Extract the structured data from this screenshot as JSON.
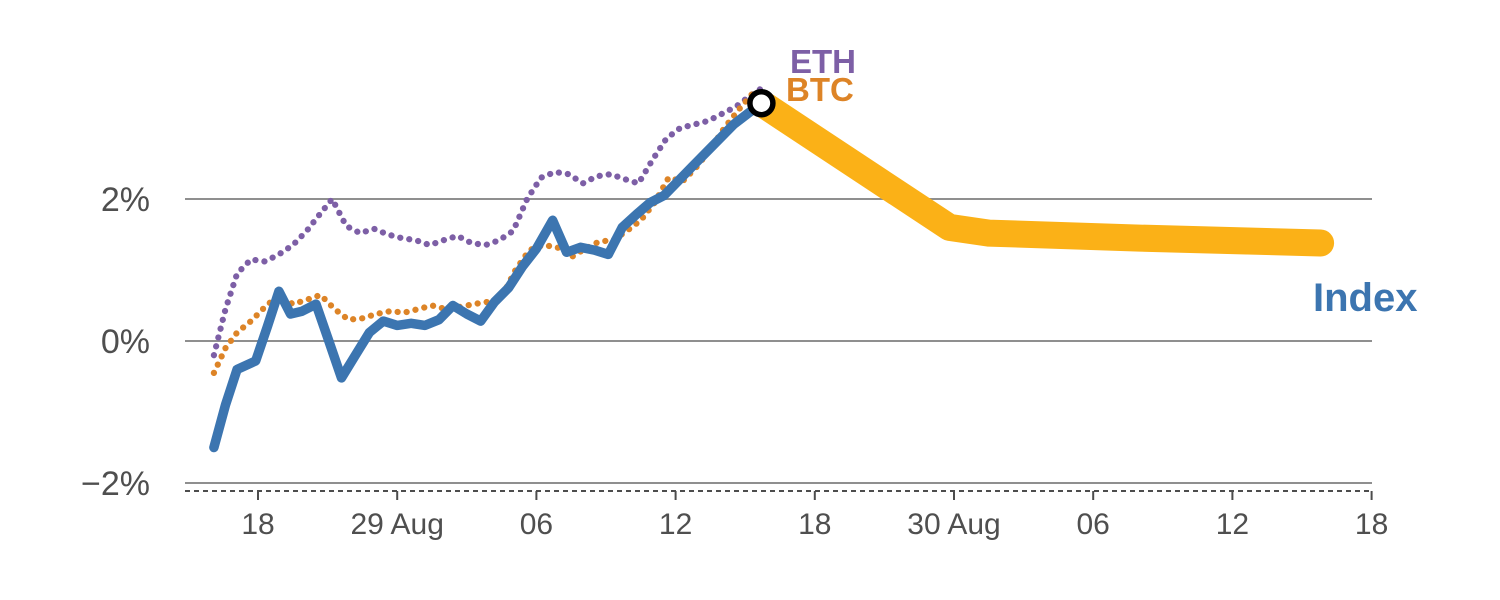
{
  "chart_data": {
    "type": "line",
    "title": "",
    "description": "Intraday percentage performance chart: dotted ETH and BTC series and a solid Index line rising to a peak (ring marker), followed by a thick orange projection band declining and flattening.",
    "grid": "horizontal-only",
    "legend_position": "inline-labels",
    "y_axis": {
      "unit": "percent",
      "tick_labels": [
        "2%",
        "0%",
        "−2%"
      ],
      "tick_values": [
        2,
        0,
        -2
      ],
      "range": [
        -2.4,
        4.0
      ]
    },
    "x_axis": {
      "unit": "hour-of-period",
      "tick_labels": [
        "18",
        "29 Aug",
        "06",
        "12",
        "18",
        "30 Aug",
        "06",
        "12",
        "18"
      ],
      "tick_values": [
        18,
        24,
        30,
        36,
        42,
        48,
        54,
        60,
        66
      ],
      "range": [
        15.5,
        66.5
      ]
    },
    "labels": {
      "eth": "ETH",
      "btc": "BTC",
      "index": "Index"
    },
    "series": [
      {
        "name": "ETH",
        "color": "#7d5fa6",
        "style": "dotted",
        "points": [
          [
            16.1,
            -0.2
          ],
          [
            16.6,
            0.45
          ],
          [
            17.1,
            0.95
          ],
          [
            17.7,
            1.15
          ],
          [
            18.3,
            1.12
          ],
          [
            18.9,
            1.22
          ],
          [
            19.5,
            1.35
          ],
          [
            20.1,
            1.55
          ],
          [
            20.7,
            1.8
          ],
          [
            21.2,
            2.0
          ],
          [
            21.8,
            1.62
          ],
          [
            22.4,
            1.52
          ],
          [
            23.0,
            1.58
          ],
          [
            23.6,
            1.5
          ],
          [
            24.2,
            1.45
          ],
          [
            24.8,
            1.42
          ],
          [
            25.4,
            1.35
          ],
          [
            26.0,
            1.42
          ],
          [
            26.6,
            1.48
          ],
          [
            27.2,
            1.38
          ],
          [
            27.8,
            1.35
          ],
          [
            28.4,
            1.42
          ],
          [
            29.0,
            1.55
          ],
          [
            29.6,
            2.0
          ],
          [
            30.2,
            2.3
          ],
          [
            30.8,
            2.38
          ],
          [
            31.4,
            2.35
          ],
          [
            32.0,
            2.22
          ],
          [
            32.6,
            2.32
          ],
          [
            33.2,
            2.35
          ],
          [
            33.8,
            2.28
          ],
          [
            34.4,
            2.22
          ],
          [
            35.0,
            2.55
          ],
          [
            35.6,
            2.85
          ],
          [
            36.2,
            3.0
          ],
          [
            36.8,
            3.05
          ],
          [
            37.4,
            3.1
          ],
          [
            38.0,
            3.2
          ],
          [
            38.6,
            3.3
          ],
          [
            39.2,
            3.45
          ],
          [
            39.8,
            3.58
          ]
        ]
      },
      {
        "name": "BTC",
        "color": "#dd8427",
        "style": "dotted",
        "points": [
          [
            16.1,
            -0.45
          ],
          [
            16.6,
            -0.1
          ],
          [
            17.1,
            0.12
          ],
          [
            17.7,
            0.28
          ],
          [
            18.3,
            0.48
          ],
          [
            18.9,
            0.65
          ],
          [
            19.5,
            0.52
          ],
          [
            20.1,
            0.58
          ],
          [
            20.7,
            0.65
          ],
          [
            21.3,
            0.45
          ],
          [
            21.9,
            0.3
          ],
          [
            22.5,
            0.32
          ],
          [
            23.1,
            0.38
          ],
          [
            23.7,
            0.42
          ],
          [
            24.3,
            0.4
          ],
          [
            24.9,
            0.45
          ],
          [
            25.5,
            0.5
          ],
          [
            26.1,
            0.45
          ],
          [
            26.7,
            0.48
          ],
          [
            27.3,
            0.52
          ],
          [
            27.9,
            0.55
          ],
          [
            28.5,
            0.62
          ],
          [
            29.1,
            1.0
          ],
          [
            29.7,
            1.28
          ],
          [
            30.3,
            1.35
          ],
          [
            30.9,
            1.32
          ],
          [
            31.5,
            1.18
          ],
          [
            32.1,
            1.3
          ],
          [
            32.7,
            1.4
          ],
          [
            33.3,
            1.42
          ],
          [
            33.9,
            1.55
          ],
          [
            34.5,
            1.7
          ],
          [
            35.1,
            1.95
          ],
          [
            35.7,
            2.3
          ],
          [
            36.3,
            2.25
          ],
          [
            36.9,
            2.45
          ],
          [
            37.5,
            2.7
          ],
          [
            38.1,
            3.0
          ],
          [
            38.7,
            3.25
          ],
          [
            39.3,
            3.48
          ]
        ]
      },
      {
        "name": "Index",
        "color": "#3c75b0",
        "style": "solid",
        "points": [
          [
            16.1,
            -1.5
          ],
          [
            16.6,
            -0.9
          ],
          [
            17.1,
            -0.4
          ],
          [
            17.9,
            -0.28
          ],
          [
            18.4,
            0.2
          ],
          [
            18.9,
            0.7
          ],
          [
            19.4,
            0.38
          ],
          [
            19.9,
            0.42
          ],
          [
            20.5,
            0.52
          ],
          [
            21.0,
            0.05
          ],
          [
            21.6,
            -0.52
          ],
          [
            22.2,
            -0.2
          ],
          [
            22.8,
            0.12
          ],
          [
            23.4,
            0.28
          ],
          [
            24.0,
            0.22
          ],
          [
            24.6,
            0.25
          ],
          [
            25.2,
            0.22
          ],
          [
            25.8,
            0.3
          ],
          [
            26.4,
            0.5
          ],
          [
            27.0,
            0.38
          ],
          [
            27.6,
            0.28
          ],
          [
            28.2,
            0.55
          ],
          [
            28.8,
            0.75
          ],
          [
            29.4,
            1.05
          ],
          [
            30.0,
            1.3
          ],
          [
            30.7,
            1.7
          ],
          [
            31.3,
            1.25
          ],
          [
            31.9,
            1.32
          ],
          [
            32.5,
            1.28
          ],
          [
            33.1,
            1.22
          ],
          [
            33.7,
            1.6
          ],
          [
            34.3,
            1.78
          ],
          [
            34.9,
            1.95
          ],
          [
            35.5,
            2.05
          ],
          [
            36.1,
            2.25
          ],
          [
            36.7,
            2.45
          ],
          [
            37.3,
            2.65
          ],
          [
            37.9,
            2.85
          ],
          [
            38.5,
            3.05
          ],
          [
            39.1,
            3.2
          ],
          [
            39.7,
            3.35
          ]
        ]
      }
    ],
    "projection": {
      "name": "projection-band",
      "color": "#fbb117",
      "points": [
        [
          39.7,
          3.35
        ],
        [
          47.8,
          1.6
        ],
        [
          49.5,
          1.52
        ],
        [
          56.0,
          1.45
        ],
        [
          63.8,
          1.38
        ]
      ]
    },
    "marker": {
      "x": 39.7,
      "y": 3.35,
      "type": "ring",
      "ring_color": "#000000",
      "fill_color": "#ffffff"
    },
    "colors": {
      "gridline": "#8f8f8f",
      "dashed_baseline": "#4d4d4d",
      "axis_text": "#4f4f4f",
      "background": "#ffffff"
    }
  }
}
